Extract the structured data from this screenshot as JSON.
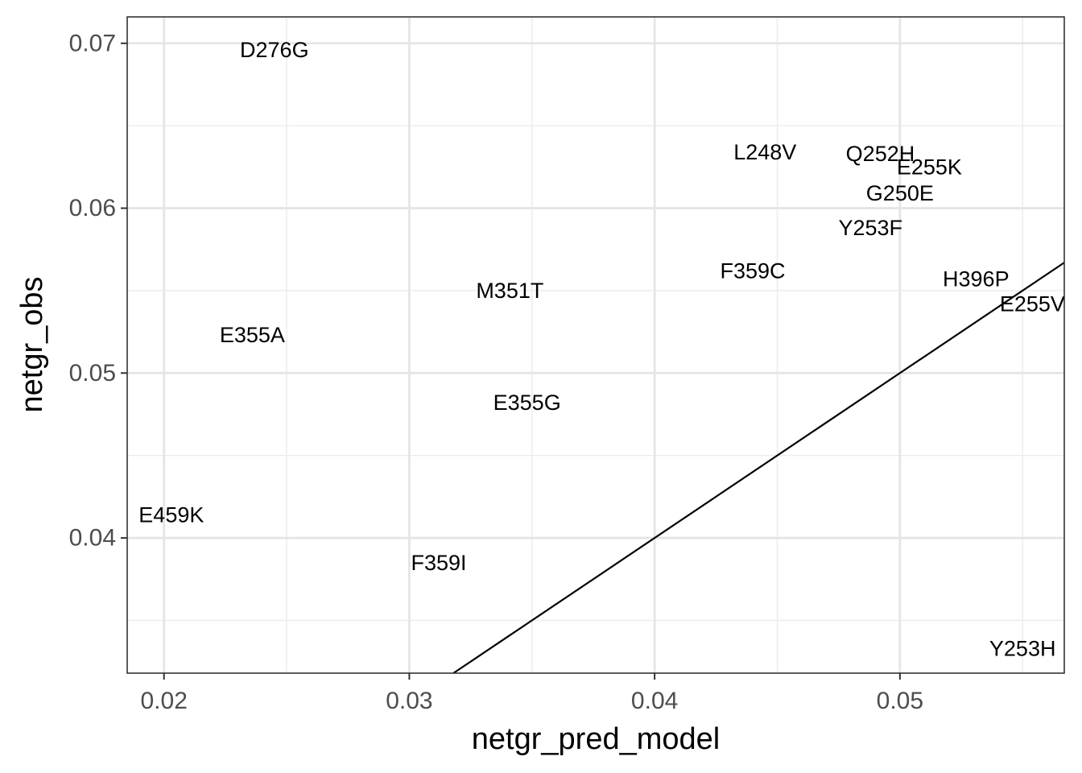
{
  "chart_data": {
    "type": "scatter",
    "title": "",
    "xlabel": "netgr_pred_model",
    "ylabel": "netgr_obs",
    "xlim": [
      0.0185,
      0.0567
    ],
    "ylim": [
      0.0318,
      0.0716
    ],
    "x_ticks": [
      0.02,
      0.03,
      0.04,
      0.05
    ],
    "x_tick_labels": [
      "0.02",
      "0.03",
      "0.04",
      "0.05"
    ],
    "y_ticks": [
      0.04,
      0.05,
      0.06,
      0.07
    ],
    "y_tick_labels": [
      "0.04",
      "0.05",
      "0.06",
      "0.07"
    ],
    "x_minor_ticks": [
      0.025,
      0.035,
      0.045,
      0.055
    ],
    "y_minor_ticks": [
      0.035,
      0.045,
      0.055,
      0.065
    ],
    "grid": true,
    "points_drawn_as": "text labels",
    "points": [
      {
        "label": "D276G",
        "x": 0.0245,
        "y": 0.0696
      },
      {
        "label": "L248V",
        "x": 0.0445,
        "y": 0.0634
      },
      {
        "label": "Q252H",
        "x": 0.0492,
        "y": 0.0633
      },
      {
        "label": "E255K",
        "x": 0.0512,
        "y": 0.0625
      },
      {
        "label": "G250E",
        "x": 0.05,
        "y": 0.0609
      },
      {
        "label": "Y253F",
        "x": 0.0488,
        "y": 0.0588
      },
      {
        "label": "F359C",
        "x": 0.044,
        "y": 0.0562
      },
      {
        "label": "H396P",
        "x": 0.0531,
        "y": 0.0557
      },
      {
        "label": "E255V",
        "x": 0.0554,
        "y": 0.0542
      },
      {
        "label": "M351T",
        "x": 0.0341,
        "y": 0.055
      },
      {
        "label": "E355A",
        "x": 0.0236,
        "y": 0.0523
      },
      {
        "label": "E355G",
        "x": 0.0348,
        "y": 0.0482
      },
      {
        "label": "E459K",
        "x": 0.0203,
        "y": 0.0414
      },
      {
        "label": "F359I",
        "x": 0.0312,
        "y": 0.0385
      },
      {
        "label": "Y253H",
        "x": 0.055,
        "y": 0.0333
      }
    ],
    "reference_line": {
      "type": "identity",
      "slope": 1,
      "intercept": 0
    }
  }
}
